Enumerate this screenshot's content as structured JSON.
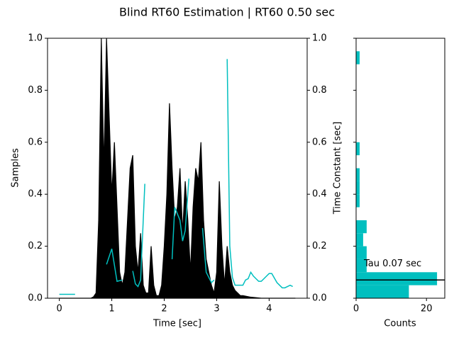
{
  "chart_data": [
    {
      "type": "line",
      "title": "Blind RT60 Estimation | RT60 0.50 sec",
      "x_label": "Time [sec]",
      "y_label": "Samples",
      "y2_label": "Time Constant [sec]",
      "xlim": [
        -0.225,
        4.725
      ],
      "xticks": [
        0,
        1,
        2,
        3,
        4
      ],
      "ylim": [
        0,
        1
      ],
      "yticks": [
        {
          "value": 0,
          "label": "0.0"
        },
        0.2,
        0.4,
        0.6,
        0.8,
        {
          "value": 1,
          "label": "1.0"
        }
      ],
      "y2lim": [
        0,
        1
      ],
      "y2ticks": [
        {
          "value": 0,
          "label": "0.0"
        },
        0.2,
        0.4,
        0.6,
        0.8,
        {
          "value": 1,
          "label": "1.0"
        }
      ],
      "series": [
        {
          "color": "#000000",
          "area": true,
          "x": [
            0,
            0.05,
            0.1,
            0.15,
            0.2,
            0.25,
            0.3,
            0.35,
            0.4,
            0.45,
            0.5,
            0.55,
            0.6,
            0.65,
            0.7,
            0.75,
            0.8,
            0.85,
            0.9,
            0.95,
            1.0,
            1.05,
            1.1,
            1.15,
            1.2,
            1.25,
            1.3,
            1.35,
            1.4,
            1.45,
            1.5,
            1.55,
            1.6,
            1.65,
            1.7,
            1.75,
            1.8,
            1.85,
            1.9,
            1.95,
            2.0,
            2.05,
            2.1,
            2.15,
            2.2,
            2.25,
            2.3,
            2.35,
            2.4,
            2.45,
            2.5,
            2.55,
            2.6,
            2.65,
            2.7,
            2.75,
            2.8,
            2.85,
            2.9,
            2.95,
            3.0,
            3.05,
            3.1,
            3.15,
            3.2,
            3.25,
            3.3,
            3.35,
            3.4,
            3.45,
            3.5,
            3.55,
            3.6,
            3.65,
            3.7,
            3.75,
            3.8,
            3.85,
            3.9,
            3.95,
            4.0,
            4.05,
            4.1,
            4.15,
            4.2,
            4.25,
            4.3,
            4.35,
            4.4,
            4.45,
            4.5
          ],
          "values": [
            0,
            0,
            0,
            0,
            0,
            0,
            0,
            0,
            0,
            0,
            0,
            0,
            0,
            0.005,
            0.02,
            0.3,
            1.0,
            0.5,
            1.0,
            0.7,
            0.4,
            0.6,
            0.35,
            0.1,
            0.05,
            0.1,
            0.3,
            0.5,
            0.55,
            0.2,
            0.1,
            0.25,
            0.05,
            0.02,
            0.02,
            0.2,
            0.05,
            0.01,
            0.01,
            0.05,
            0.2,
            0.4,
            0.75,
            0.5,
            0.3,
            0.35,
            0.5,
            0.25,
            0.45,
            0.3,
            0.1,
            0.35,
            0.5,
            0.45,
            0.6,
            0.3,
            0.15,
            0.1,
            0.05,
            0.02,
            0.1,
            0.45,
            0.2,
            0.05,
            0.2,
            0.1,
            0.05,
            0.03,
            0.02,
            0.01,
            0.01,
            0.008,
            0.006,
            0.004,
            0.003,
            0.002,
            0.001,
            0,
            0,
            0,
            0,
            0,
            0,
            0,
            0,
            0,
            0,
            0,
            0,
            0,
            0
          ]
        },
        {
          "color": "#00bfbf",
          "axis": "y2",
          "x": [
            0,
            0.3,
            0.6,
            0.9,
            1.0,
            1.1,
            1.2,
            1.3,
            1.4,
            1.45,
            1.5,
            1.55,
            1.63,
            1.9,
            2.15,
            2.2,
            2.3,
            2.35,
            2.4,
            2.47,
            2.6,
            2.73,
            2.8,
            2.9,
            2.95,
            3.1,
            3.2,
            3.25,
            3.3,
            3.35,
            3.4,
            3.5,
            3.55,
            3.6,
            3.65,
            3.7,
            3.8,
            3.85,
            3.9,
            4.0,
            4.05,
            4.15,
            4.25,
            4.3,
            4.4,
            4.45
          ],
          "values": [
            0.015,
            0.015,
            null,
            0.13,
            0.19,
            0.065,
            0.07,
            null,
            0.105,
            0.055,
            0.045,
            0.07,
            0.44,
            null,
            0.15,
            0.35,
            0.3,
            0.22,
            0.26,
            0.46,
            null,
            0.27,
            0.1,
            0.06,
            0.07,
            null,
            0.92,
            0.2,
            0.08,
            0.05,
            0.05,
            0.05,
            0.07,
            0.075,
            0.1,
            0.085,
            0.065,
            0.065,
            0.075,
            0.095,
            0.095,
            0.06,
            0.04,
            0.04,
            0.05,
            0.045
          ]
        }
      ]
    },
    {
      "type": "histogram",
      "orientation": "horizontal",
      "color": "#00bfbf",
      "x_label": "Counts",
      "bins": [
        0,
        0.05,
        0.1,
        0.15,
        0.2,
        0.25,
        0.3,
        0.35,
        0.4,
        0.45,
        0.5,
        0.55,
        0.6,
        0.65,
        0.7,
        0.75,
        0.8,
        0.85,
        0.9,
        0.95,
        1.0
      ],
      "counts": [
        15,
        23,
        3,
        3,
        2,
        3,
        0,
        1,
        1,
        1,
        0,
        1,
        0,
        0,
        0,
        0,
        0,
        0,
        1,
        0
      ],
      "xlim": [
        0,
        25.2
      ],
      "xticks": [
        0,
        20
      ],
      "ylim": [
        0,
        1
      ],
      "yticks": [
        0,
        0.2,
        0.4,
        0.6,
        0.8,
        1
      ],
      "tau": 0.07,
      "tau_label": "Tau 0.07 sec"
    }
  ]
}
